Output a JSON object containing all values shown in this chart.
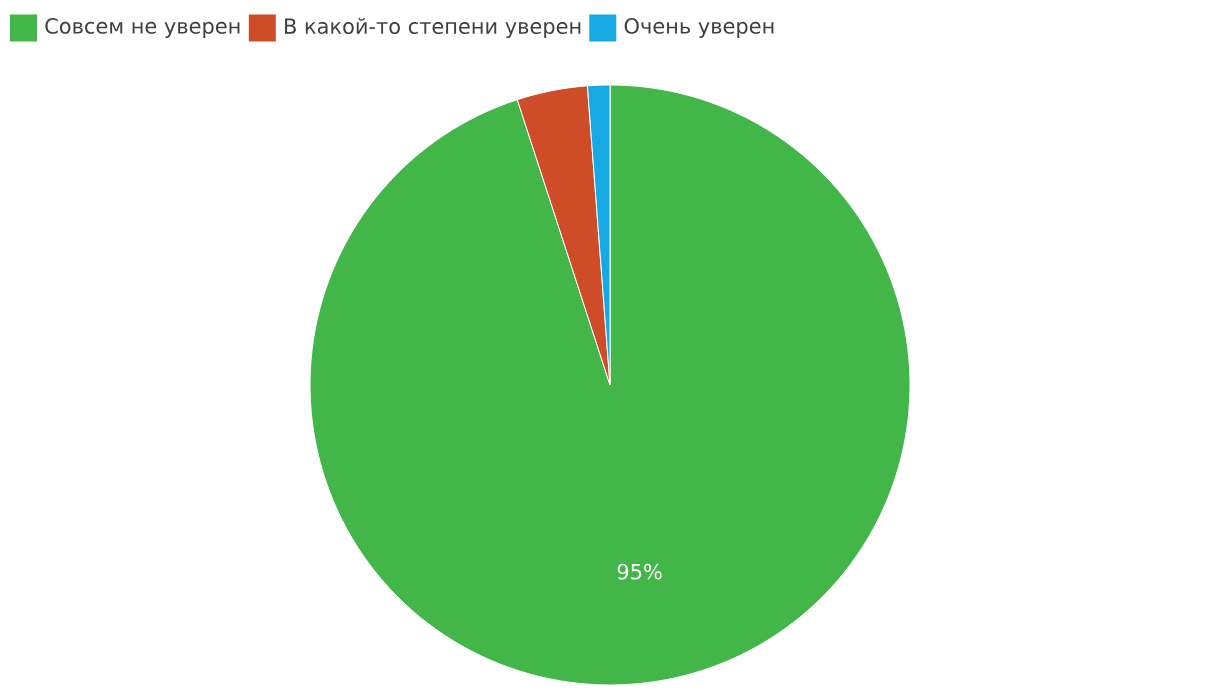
{
  "chart_data": {
    "type": "pie",
    "categories": [
      "Совсем не уверен",
      "В какой-то степени уверен",
      "Очень уверен"
    ],
    "values": [
      95,
      3.8,
      1.2
    ],
    "colors": [
      "#43b649",
      "#cf4c28",
      "#17a9e1"
    ],
    "value_labels": [
      "95%",
      null,
      null
    ],
    "legend": "top left"
  }
}
